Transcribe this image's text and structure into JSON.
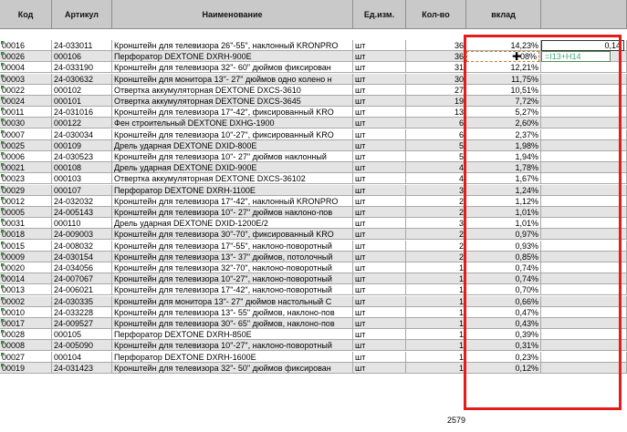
{
  "headers": {
    "kod": "Код",
    "artikul": "Артикул",
    "naimenovanie": "Наименование",
    "ed": "Ед.изм.",
    "kolvo": "Кол-во",
    "vklad": "вклад",
    "extra": ""
  },
  "selected_cell_value": "0,14",
  "editing_formula": "=I13+H14",
  "editing_cell_partial": "08%",
  "rows": [
    {
      "kod": "00016",
      "art": "24-033011",
      "name": "Кронштейн для телевизора 26\"-55\", наклонный KRONPRO",
      "ed": "шт",
      "qty": "36",
      "vklad": "14,23%"
    },
    {
      "kod": "00026",
      "art": "000106",
      "name": "Перфоратор DEXTONE DXRH-900E",
      "ed": "шт",
      "qty": "36",
      "vklad": ""
    },
    {
      "kod": "00004",
      "art": "24-033190",
      "name": "Кронштейн для телевизора  32\"- 60\" дюймов фиксирован",
      "ed": "шт",
      "qty": "31",
      "vklad": "12,21%"
    },
    {
      "kod": "00003",
      "art": "24-030632",
      "name": "Кронштейн для монитора 13\"- 27\" дюймов одно колено н",
      "ed": "шт",
      "qty": "30",
      "vklad": "11,75%"
    },
    {
      "kod": "00022",
      "art": "000102",
      "name": "Отвертка аккумуляторная DEXTONE DXCS-3610",
      "ed": "шт",
      "qty": "27",
      "vklad": "10,51%"
    },
    {
      "kod": "00024",
      "art": "000101",
      "name": "Отвертка аккумуляторная DEXTONE DXCS-3645",
      "ed": "шт",
      "qty": "19",
      "vklad": "7,72%"
    },
    {
      "kod": "00011",
      "art": "24-031016",
      "name": "Кронштейн для телевизора 17\"-42\", фиксированный KRO",
      "ed": "шт",
      "qty": "13",
      "vklad": "5,27%"
    },
    {
      "kod": "00030",
      "art": "000122",
      "name": "Фен строительный  DEXTONE DXHG-1900",
      "ed": "шт",
      "qty": "6",
      "vklad": "2,60%"
    },
    {
      "kod": "00007",
      "art": "24-030034",
      "name": "Кронштейн для телевизора 10\"-27\", фиксированный KRO",
      "ed": "шт",
      "qty": "6",
      "vklad": "2,37%"
    },
    {
      "kod": "00025",
      "art": "000109",
      "name": "Дрель ударная DEXTONE DXID-800E",
      "ed": "шт",
      "qty": "5",
      "vklad": "1,98%"
    },
    {
      "kod": "00006",
      "art": "24-030523",
      "name": "Кронштейн для телевизора 10\"- 27\" дюймов  наклонный",
      "ed": "шт",
      "qty": "5",
      "vklad": "1,94%"
    },
    {
      "kod": "00021",
      "art": "000108",
      "name": "Дрель ударная DEXTONE DXID-900E",
      "ed": "шт",
      "qty": "4",
      "vklad": "1,78%"
    },
    {
      "kod": "00023",
      "art": "000103",
      "name": "Отвертка аккумуляторная DEXTONE DXCS-36102",
      "ed": "шт",
      "qty": "4",
      "vklad": "1,67%"
    },
    {
      "kod": "00029",
      "art": "000107",
      "name": "Перфоратор DEXTONE DXRH-1100E",
      "ed": "шт",
      "qty": "3",
      "vklad": "1,24%"
    },
    {
      "kod": "00012",
      "art": "24-032032",
      "name": "Кронштейн для телевизора 17\"-42\", наклонный KRONPRO",
      "ed": "шт",
      "qty": "2",
      "vklad": "1,12%"
    },
    {
      "kod": "00005",
      "art": "24-005143",
      "name": "Кронштейн для телевизора 10\"- 27\" дюймов  наклоно-пов",
      "ed": "шт",
      "qty": "2",
      "vklad": "1,01%"
    },
    {
      "kod": "00031",
      "art": "000110",
      "name": "Дрель ударная DEXTONE DXID-1200E/2",
      "ed": "шт",
      "qty": "3",
      "vklad": "1,01%"
    },
    {
      "kod": "00018",
      "art": "24-009003",
      "name": "Кронштейн для телевизора 30\"-70\", фиксированный KRO",
      "ed": "шт",
      "qty": "2",
      "vklad": "0,97%"
    },
    {
      "kod": "00015",
      "art": "24-008032",
      "name": "Кронштейн для телевизора 17\"-55\", наклоно-поворотный",
      "ed": "шт",
      "qty": "2",
      "vklad": "0,93%"
    },
    {
      "kod": "00009",
      "art": "24-030154",
      "name": "Кронштейн для телевизора 13\"- 37\" дюймов, потолочный",
      "ed": "шт",
      "qty": "2",
      "vklad": "0,85%"
    },
    {
      "kod": "00020",
      "art": "24-034056",
      "name": "Кронштейн для телевизора 32\"-70\", наклоно-поворотный",
      "ed": "шт",
      "qty": "1",
      "vklad": "0,74%"
    },
    {
      "kod": "00014",
      "art": "24-007067",
      "name": "Кронштейн для телевизора 10\"-27\", наклоно-поворотный",
      "ed": "шт",
      "qty": "1",
      "vklad": "0,74%"
    },
    {
      "kod": "00013",
      "art": "24-006021",
      "name": "Кронштейн для телевизора 17\"-42\", наклоно-поворотный",
      "ed": "шт",
      "qty": "1",
      "vklad": "0,70%"
    },
    {
      "kod": "00002",
      "art": "24-030335",
      "name": "Кронштейн для монитора 13\"- 27\" дюймов настольный  С",
      "ed": "шт",
      "qty": "1",
      "vklad": "0,66%"
    },
    {
      "kod": "00010",
      "art": "24-033228",
      "name": "Кронштейн для телевизора 13\"- 55\" дюймов, наклоно-пов",
      "ed": "шт",
      "qty": "1",
      "vklad": "0,47%"
    },
    {
      "kod": "00017",
      "art": "24-009527",
      "name": "Кронштейн для телевизора 30\"- 65\" дюймов, наклоно-пов",
      "ed": "шт",
      "qty": "1",
      "vklad": "0,43%"
    },
    {
      "kod": "00028",
      "art": "000105",
      "name": "Перфоратор DEXTONE DXRH-850E",
      "ed": "шт",
      "qty": "1",
      "vklad": "0,39%"
    },
    {
      "kod": "00008",
      "art": "24-005090",
      "name": "Кронштейн для телевизора 10\"-27\", наклоно-поворотный",
      "ed": "шт",
      "qty": "1",
      "vklad": "0,31%"
    },
    {
      "kod": "00027",
      "art": "000104",
      "name": "Перфоратор DEXTONE DXRH-1600E",
      "ed": "шт",
      "qty": "1",
      "vklad": "0,23%"
    },
    {
      "kod": "00019",
      "art": "24-031423",
      "name": "Кронштейн для телевизора 32\"- 50\" дюймов фиксирован",
      "ed": "шт",
      "qty": "1",
      "vklad": "0,12%"
    }
  ],
  "total_qty": "2579",
  "colors": {
    "highlight_border": "#e31c1c",
    "header_bg": "#c9c9c9",
    "stripe_bg": "#e4e4e4",
    "error_marker": "#2e8b2e"
  }
}
